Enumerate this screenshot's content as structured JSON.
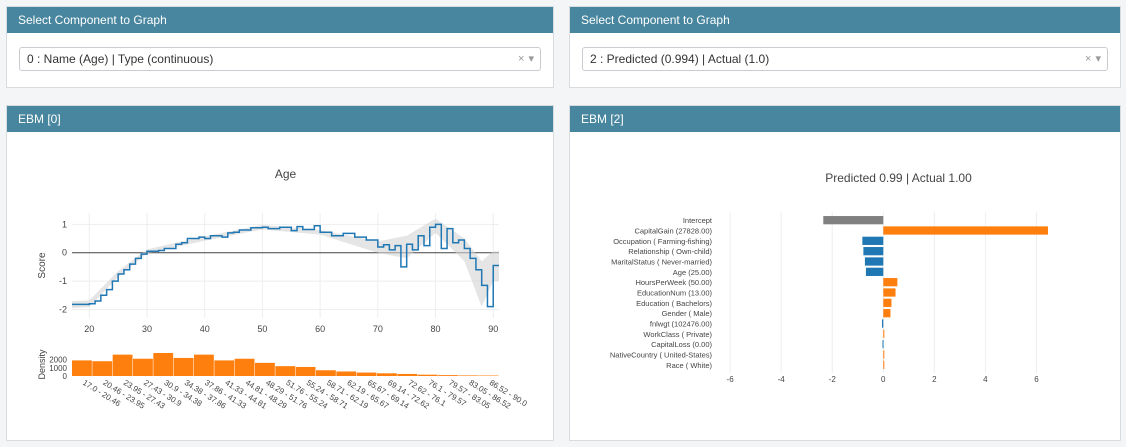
{
  "selectors": [
    {
      "header": "Select Component to Graph",
      "value": "0 : Name (Age) | Type (continuous)"
    },
    {
      "header": "Select Component to Graph",
      "value": "2 : Predicted (0.994) | Actual (1.0)"
    }
  ],
  "clear_glyph": "×",
  "dropdown_glyph": "▾",
  "left_panel": {
    "header": "EBM [0]",
    "chart_data": {
      "type": "line",
      "title": "Age",
      "ylabel": "Score",
      "xlim": [
        17,
        91
      ],
      "ylim": [
        -2.3,
        1.4
      ],
      "x_ticks": [
        20,
        30,
        40,
        50,
        60,
        70,
        80,
        90
      ],
      "y_ticks": [
        1,
        0,
        -1,
        -2
      ],
      "series": [
        {
          "name": "Score",
          "points": [
            [
              17,
              -1.82
            ],
            [
              20,
              -1.8
            ],
            [
              21,
              -1.7
            ],
            [
              22,
              -1.5
            ],
            [
              23,
              -1.3
            ],
            [
              24,
              -1.0
            ],
            [
              25,
              -0.75
            ],
            [
              26,
              -0.6
            ],
            [
              27,
              -0.4
            ],
            [
              28,
              -0.2
            ],
            [
              29,
              -0.05
            ],
            [
              30,
              0.05
            ],
            [
              32,
              0.08
            ],
            [
              33,
              0.15
            ],
            [
              35,
              0.3
            ],
            [
              36,
              0.35
            ],
            [
              37,
              0.5
            ],
            [
              39,
              0.55
            ],
            [
              40,
              0.5
            ],
            [
              41,
              0.6
            ],
            [
              43,
              0.55
            ],
            [
              44,
              0.7
            ],
            [
              45,
              0.72
            ],
            [
              46,
              0.8
            ],
            [
              48,
              0.88
            ],
            [
              50,
              0.9
            ],
            [
              51,
              0.85
            ],
            [
              53,
              0.9
            ],
            [
              55,
              0.78
            ],
            [
              56,
              0.92
            ],
            [
              57,
              0.82
            ],
            [
              59,
              0.95
            ],
            [
              60,
              0.72
            ],
            [
              62,
              0.6
            ],
            [
              64,
              0.68
            ],
            [
              66,
              0.55
            ],
            [
              68,
              0.45
            ],
            [
              70,
              0.2
            ],
            [
              71,
              0.28
            ],
            [
              72,
              0.1
            ],
            [
              73,
              0.25
            ],
            [
              74,
              -0.5
            ],
            [
              75,
              0.3
            ],
            [
              76,
              0.1
            ],
            [
              77,
              0.6
            ],
            [
              78,
              0.25
            ],
            [
              79,
              0.9
            ],
            [
              80,
              1.0
            ],
            [
              81,
              0.15
            ],
            [
              82,
              0.85
            ],
            [
              83,
              0.35
            ],
            [
              84,
              0.45
            ],
            [
              85,
              0.15
            ],
            [
              86,
              -0.2
            ],
            [
              87,
              -0.6
            ],
            [
              88,
              -1.15
            ],
            [
              89,
              -1.9
            ],
            [
              90,
              -0.45
            ],
            [
              91,
              -0.45
            ]
          ]
        }
      ],
      "band": {
        "upper": [
          [
            17,
            -1.7
          ],
          [
            20,
            -1.68
          ],
          [
            25,
            -0.65
          ],
          [
            30,
            0.12
          ],
          [
            40,
            0.58
          ],
          [
            50,
            0.98
          ],
          [
            60,
            0.8
          ],
          [
            70,
            0.4
          ],
          [
            75,
            0.6
          ],
          [
            80,
            1.2
          ],
          [
            85,
            0.5
          ],
          [
            88,
            -0.3
          ],
          [
            90,
            0.05
          ],
          [
            91,
            0.05
          ]
        ],
        "lower": [
          [
            17,
            -1.95
          ],
          [
            20,
            -1.92
          ],
          [
            25,
            -0.85
          ],
          [
            30,
            -0.02
          ],
          [
            40,
            0.42
          ],
          [
            50,
            0.82
          ],
          [
            60,
            0.64
          ],
          [
            70,
            0.0
          ],
          [
            75,
            -0.2
          ],
          [
            80,
            0.7
          ],
          [
            85,
            -0.3
          ],
          [
            88,
            -1.9
          ],
          [
            90,
            -1.0
          ],
          [
            91,
            -1.0
          ]
        ]
      }
    },
    "density": {
      "ylabel": "Density",
      "y_ticks": [
        2000,
        1000,
        0
      ],
      "ymax": 2800,
      "color": "#ff7f0e",
      "bins": [
        "17.0 - 20.46",
        "20.46 - 23.95",
        "23.95 - 27.43",
        "27.43 - 30.9",
        "30.9 - 34.38",
        "34.38 - 37.86",
        "37.86 - 41.33",
        "41.33 - 44.81",
        "44.81 - 48.29",
        "48.29 - 51.76",
        "51.76 - 55.24",
        "55.24 - 58.71",
        "58.71 - 62.19",
        "62.19 - 65.67",
        "65.67 - 69.14",
        "69.14 - 72.62",
        "72.62 - 76.1",
        "76.1 - 79.57",
        "79.57 - 83.05",
        "83.05 - 86.52",
        "86.52 - 90.0"
      ],
      "values": [
        1900,
        1800,
        2600,
        2100,
        2800,
        2200,
        2600,
        1900,
        2100,
        1600,
        1200,
        1100,
        700,
        550,
        420,
        330,
        250,
        160,
        110,
        70,
        60
      ]
    }
  },
  "right_panel": {
    "header": "EBM [2]",
    "chart_data": {
      "type": "bar",
      "orientation": "horizontal",
      "title": "Predicted 0.99 | Actual 1.00",
      "xlim": [
        -6.2,
        7
      ],
      "x_ticks": [
        -6,
        -4,
        -2,
        0,
        2,
        4,
        6
      ],
      "categories": [
        "Intercept",
        "CapitalGain (27828.00)",
        "Occupation ( Farming-fishing)",
        "Relationship ( Own-child)",
        "MaritalStatus ( Never-married)",
        "Age (25.00)",
        "HoursPerWeek (50.00)",
        "EducationNum (13.00)",
        "Education ( Bachelors)",
        "Gender ( Male)",
        "fnlwgt (102476.00)",
        "WorkClass ( Private)",
        "CapitalLoss (0.00)",
        "NativeCountry ( United-States)",
        "Race ( White)"
      ],
      "values": [
        -2.35,
        6.45,
        -0.82,
        -0.78,
        -0.72,
        -0.68,
        0.55,
        0.48,
        0.32,
        0.28,
        -0.05,
        0.04,
        -0.03,
        0.03,
        0.02
      ],
      "colors": {
        "intercept": "#808080",
        "positive": "#ff7f0e",
        "negative": "#1f77b4"
      }
    }
  }
}
